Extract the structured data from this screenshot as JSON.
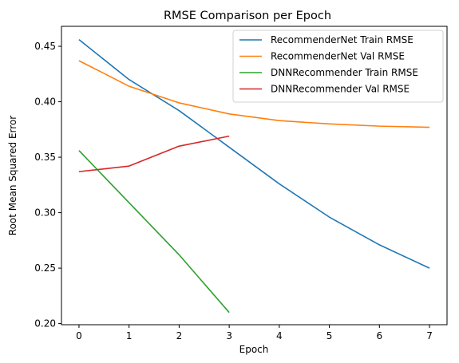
{
  "chart_data": {
    "type": "line",
    "title": "RMSE Comparison per Epoch",
    "xlabel": "Epoch",
    "ylabel": "Root Mean Squared Error",
    "xlim": [
      -0.35,
      7.35
    ],
    "ylim": [
      0.199,
      0.468
    ],
    "xticks": [
      0,
      1,
      2,
      3,
      4,
      5,
      6,
      7
    ],
    "yticks": [
      0.2,
      0.25,
      0.3,
      0.35,
      0.4,
      0.45
    ],
    "ytick_labels": [
      "0.20",
      "0.25",
      "0.30",
      "0.35",
      "0.40",
      "0.45"
    ],
    "grid": false,
    "legend_position": "top-right",
    "series": [
      {
        "name": "RecommenderNet Train RMSE",
        "color": "#1f77b4",
        "x": [
          0,
          1,
          2,
          3,
          4,
          5,
          6,
          7
        ],
        "y": [
          0.456,
          0.42,
          0.392,
          0.359,
          0.326,
          0.296,
          0.271,
          0.25
        ]
      },
      {
        "name": "RecommenderNet Val RMSE",
        "color": "#ff7f0e",
        "x": [
          0,
          1,
          2,
          3,
          4,
          5,
          6,
          7
        ],
        "y": [
          0.437,
          0.414,
          0.399,
          0.389,
          0.383,
          0.38,
          0.378,
          0.377
        ]
      },
      {
        "name": "DNNRecommender Train RMSE",
        "color": "#2ca02c",
        "x": [
          0,
          1,
          2,
          3
        ],
        "y": [
          0.356,
          0.309,
          0.262,
          0.21
        ]
      },
      {
        "name": "DNNRecommender Val RMSE",
        "color": "#d62728",
        "x": [
          0,
          1,
          2,
          3
        ],
        "y": [
          0.337,
          0.342,
          0.36,
          0.369
        ]
      }
    ]
  }
}
